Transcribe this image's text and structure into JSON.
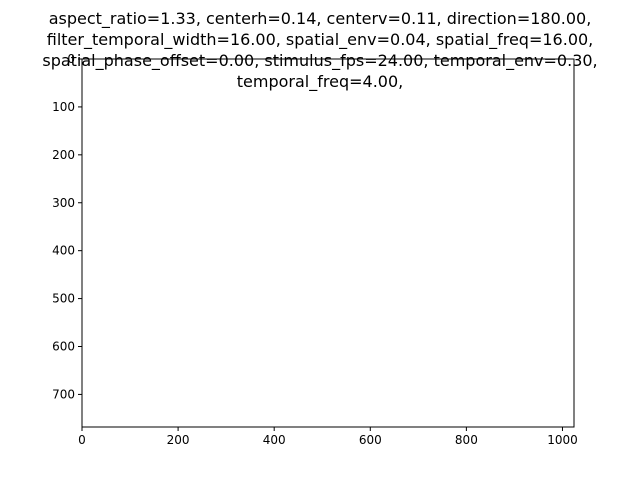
{
  "chart_data": {
    "type": "heatmap",
    "title_lines": [
      "aspect_ratio=1.33, centerh=0.14, centerv=0.11, direction=180.00,",
      "filter_temporal_width=16.00, spatial_env=0.04, spatial_freq=16.00,",
      "spatial_phase_offset=0.00, stimulus_fps=24.00, temporal_env=0.30,",
      "temporal_freq=4.00,"
    ],
    "xlabel": "",
    "ylabel": "",
    "xlim": [
      0,
      1024
    ],
    "ylim": [
      768,
      0
    ],
    "x_ticks": [
      0,
      200,
      400,
      600,
      800,
      1000
    ],
    "y_ticks": [
      0,
      100,
      200,
      300,
      400,
      500,
      600,
      700
    ],
    "grid": false,
    "values": []
  }
}
